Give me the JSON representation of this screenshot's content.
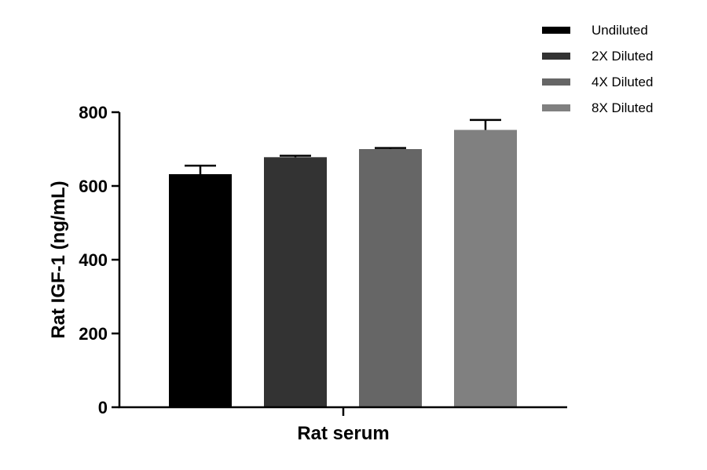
{
  "chart_data": {
    "type": "bar",
    "title": "",
    "xlabel": "Rat serum",
    "ylabel": "Rat IGF-1 (ng/mL)",
    "ylim": [
      0,
      800
    ],
    "yticks": [
      "0",
      "200",
      "400",
      "600",
      "800"
    ],
    "grid": false,
    "legend_position": "top-right",
    "series": [
      {
        "name": "Undiluted",
        "value": 632,
        "error": 23,
        "color": "#000000"
      },
      {
        "name": "2X Diluted",
        "value": 678,
        "error": 4,
        "color": "#333333"
      },
      {
        "name": "4X Diluted",
        "value": 700,
        "error": 3,
        "color": "#666666"
      },
      {
        "name": "8X Diluted",
        "value": 752,
        "error": 27,
        "color": "#808080"
      }
    ]
  }
}
